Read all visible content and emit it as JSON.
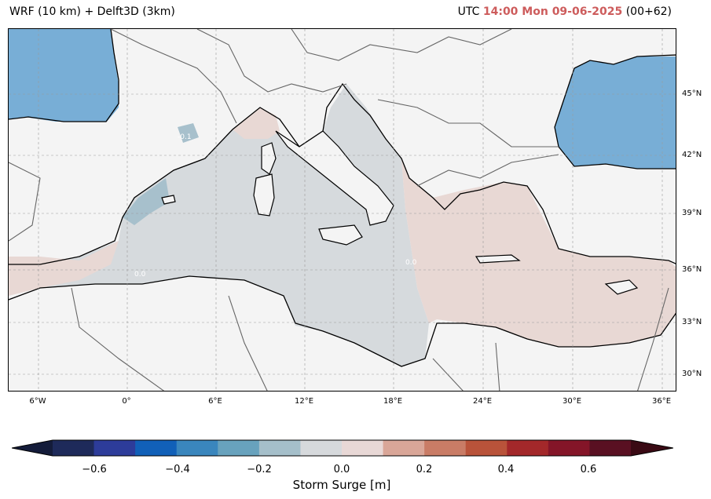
{
  "title_left": "WRF (10 km) + Delft3D (3km)",
  "title_right": {
    "prefix": "UTC",
    "highlight": "14:00 Mon 09-06-2025",
    "suffix": "(00+62)"
  },
  "lat_labels": [
    "45°N",
    "42°N",
    "39°N",
    "36°N",
    "33°N",
    "30°N"
  ],
  "lon_labels": [
    "6°W",
    "0°",
    "6°E",
    "12°E",
    "18°E",
    "24°E",
    "30°E",
    "36°E"
  ],
  "contour_labels": [
    "0.0",
    "-0.1"
  ],
  "colorbar": {
    "label": "Storm Surge [m]",
    "ticks": [
      "−0.6",
      "−0.4",
      "−0.2",
      "0.0",
      "0.2",
      "0.4",
      "0.6"
    ],
    "colors": [
      "#1e2a5a",
      "#2d3c9a",
      "#1160b8",
      "#3a86bd",
      "#68a2bd",
      "#a5bfca",
      "#d6d9dc",
      "#e8d8d6",
      "#d9a698",
      "#c97c66",
      "#b9533a",
      "#a3282a",
      "#841528",
      "#591022"
    ]
  },
  "colors": {
    "land": "#f4f4f4",
    "sea_neutral": "#d6dadd",
    "sea_positive": "#e8d8d4",
    "sea_negative": "#78aed6",
    "sea_light_negative": "#a7c0cc"
  }
}
